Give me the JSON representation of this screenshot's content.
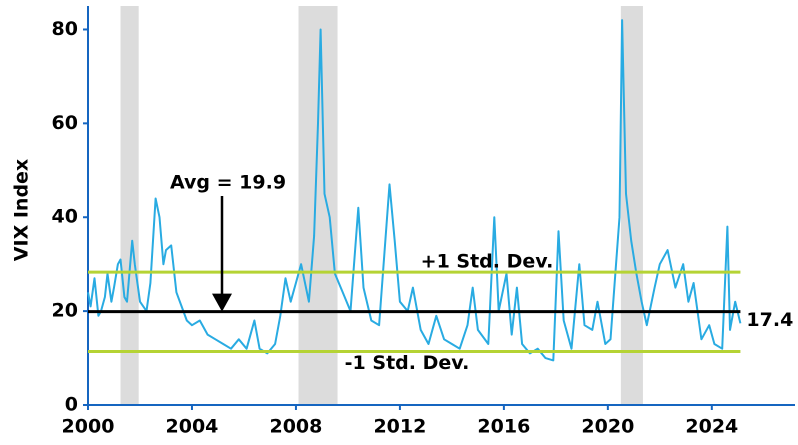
{
  "chart_data": {
    "type": "line",
    "y_label": "VIX Index",
    "xlim": [
      2000,
      2027.2
    ],
    "xticks": [
      2000,
      2004,
      2008,
      2012,
      2016,
      2020,
      2024
    ],
    "ylim": [
      0,
      85
    ],
    "yticks": [
      0,
      20,
      40,
      60,
      80
    ],
    "color": "#29abe2",
    "shade_color": "#dcdcdc",
    "shaded_periods": [
      [
        2001.25,
        2001.95
      ],
      [
        2008.1,
        2009.6
      ],
      [
        2020.5,
        2021.35
      ]
    ],
    "series": [
      {
        "x": [
          2000.0,
          2000.1,
          2000.25,
          2000.4,
          2000.5,
          2000.65,
          2000.75,
          2000.9,
          2001.0,
          2001.15,
          2001.25,
          2001.4,
          2001.5,
          2001.7,
          2001.8,
          2001.9,
          2002.0,
          2002.25,
          2002.4,
          2002.5,
          2002.6,
          2002.75,
          2002.9,
          2003.0,
          2003.2,
          2003.4,
          2003.6,
          2003.8,
          2004.0,
          2004.3,
          2004.6,
          2004.9,
          2005.2,
          2005.5,
          2005.8,
          2006.1,
          2006.4,
          2006.6,
          2006.9,
          2007.2,
          2007.4,
          2007.6,
          2007.8,
          2008.0,
          2008.2,
          2008.5,
          2008.7,
          2008.85,
          2008.95,
          2009.1,
          2009.3,
          2009.5,
          2009.8,
          2010.1,
          2010.4,
          2010.6,
          2010.9,
          2011.2,
          2011.6,
          2011.8,
          2012.0,
          2012.3,
          2012.5,
          2012.8,
          2013.1,
          2013.4,
          2013.7,
          2014.0,
          2014.3,
          2014.6,
          2014.8,
          2015.0,
          2015.4,
          2015.63,
          2015.8,
          2016.1,
          2016.3,
          2016.5,
          2016.7,
          2017.0,
          2017.3,
          2017.6,
          2017.9,
          2018.1,
          2018.3,
          2018.6,
          2018.9,
          2019.1,
          2019.4,
          2019.6,
          2019.9,
          2020.1,
          2020.45,
          2020.55,
          2020.7,
          2020.9,
          2021.1,
          2021.3,
          2021.5,
          2021.8,
          2022.0,
          2022.3,
          2022.6,
          2022.9,
          2023.1,
          2023.3,
          2023.6,
          2023.9,
          2024.1,
          2024.4,
          2024.6,
          2024.7,
          2024.9,
          2025.1
        ],
        "values": [
          24,
          21,
          27,
          19,
          20,
          23,
          28,
          22,
          25,
          30,
          31,
          23,
          22,
          35,
          30,
          26,
          22,
          20,
          26,
          35,
          44,
          40,
          30,
          33,
          34,
          24,
          21,
          18,
          17,
          18,
          15,
          14,
          13,
          12,
          14,
          12,
          18,
          12,
          11,
          13,
          19,
          27,
          22,
          26,
          30,
          22,
          36,
          60,
          80,
          45,
          40,
          28,
          24,
          20,
          42,
          25,
          18,
          17,
          47,
          35,
          22,
          20,
          25,
          16,
          13,
          19,
          14,
          13,
          12,
          17,
          25,
          16,
          13,
          40,
          20,
          28,
          15,
          25,
          13,
          11,
          12,
          10,
          9.5,
          37,
          18,
          12,
          30,
          17,
          16,
          22,
          13,
          14,
          40,
          82,
          45,
          35,
          28,
          22,
          17,
          25,
          30,
          33,
          25,
          30,
          22,
          26,
          14,
          17,
          13,
          12,
          38,
          16,
          22,
          17.4
        ]
      }
    ],
    "reference_lines": [
      {
        "value": 19.9,
        "label": "Avg =  19.9",
        "color": "#000000"
      },
      {
        "value": 28.3,
        "label": "+1 Std. Dev.",
        "color": "#b5d334"
      },
      {
        "value": 11.4,
        "label": "-1 Std. Dev.",
        "color": "#b5d334"
      }
    ],
    "end_label": {
      "value": 17.4,
      "label": "17.4"
    }
  }
}
